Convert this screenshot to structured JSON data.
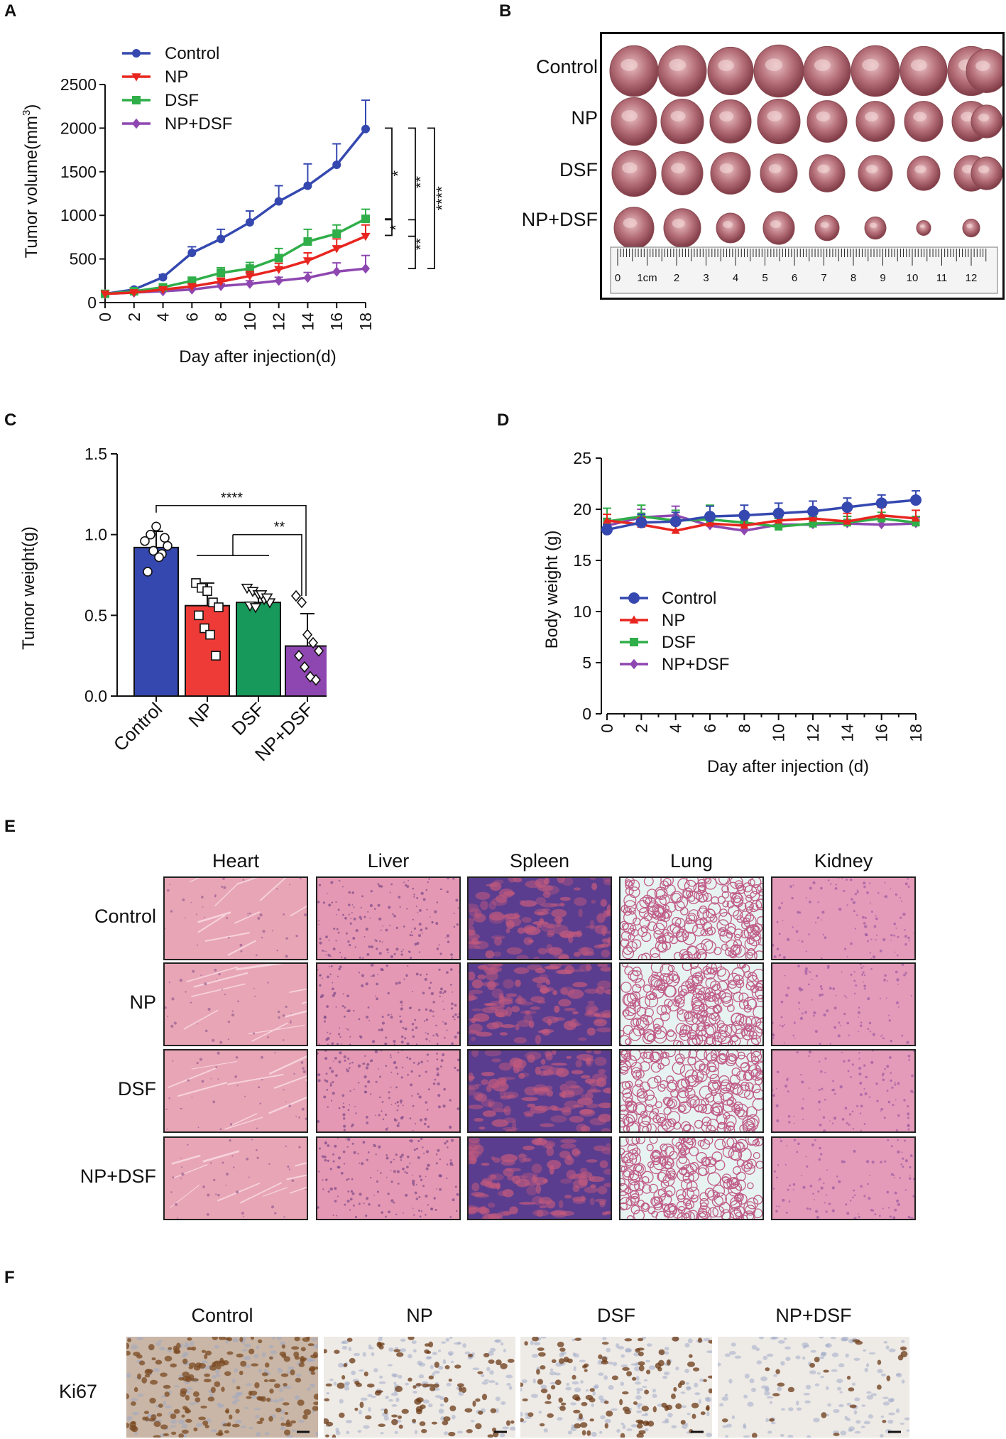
{
  "panels": {
    "A": "A",
    "B": "B",
    "C": "C",
    "D": "D",
    "E": "E",
    "F": "F"
  },
  "colors": {
    "control": "#3548b0",
    "np": "#e8251f",
    "dsf": "#2fae49",
    "npdsf": "#8e47b0",
    "dsf_bar": "#16995a",
    "np_bar": "#ee3b37"
  },
  "chart_data": [
    {
      "id": "A",
      "type": "line",
      "title": "",
      "xlabel": "Day after injection(d)",
      "ylabel": "Tumor volume(mm",
      "ylabel_sup": "3",
      "ylabel_close": ")",
      "x": [
        0,
        2,
        4,
        6,
        8,
        10,
        12,
        14,
        16,
        18
      ],
      "xlim": [
        0,
        18
      ],
      "ylim": [
        0,
        2500
      ],
      "yticks": [
        0,
        500,
        1000,
        1500,
        2000,
        2500
      ],
      "series": [
        {
          "name": "Control",
          "values": [
            100,
            150,
            290,
            570,
            730,
            920,
            1160,
            1340,
            1580,
            1990
          ],
          "err": [
            0,
            20,
            30,
            70,
            110,
            130,
            180,
            250,
            240,
            330
          ],
          "marker": "circle"
        },
        {
          "name": "NP",
          "values": [
            100,
            115,
            150,
            185,
            240,
            305,
            380,
            480,
            620,
            760
          ],
          "err": [
            0,
            10,
            20,
            30,
            40,
            50,
            70,
            90,
            110,
            130
          ],
          "marker": "triangle-down"
        },
        {
          "name": "DSF",
          "values": [
            100,
            130,
            175,
            250,
            340,
            390,
            510,
            700,
            790,
            960
          ],
          "err": [
            0,
            15,
            25,
            40,
            60,
            70,
            110,
            140,
            100,
            110
          ],
          "marker": "square"
        },
        {
          "name": "NP+DSF",
          "values": [
            100,
            115,
            130,
            150,
            190,
            215,
            250,
            285,
            355,
            390
          ],
          "err": [
            0,
            10,
            15,
            20,
            25,
            35,
            40,
            60,
            100,
            150
          ],
          "marker": "diamond"
        }
      ],
      "annotations": [
        {
          "text": "*",
          "between": [
            "Control",
            "DSF"
          ]
        },
        {
          "text": "**",
          "between": [
            "Control",
            "NP"
          ]
        },
        {
          "text": "****",
          "between": [
            "Control",
            "NP+DSF"
          ]
        },
        {
          "text": "*",
          "between": [
            "DSF",
            "NP"
          ]
        },
        {
          "text": "**",
          "between": [
            "DSF",
            "NP+DSF"
          ]
        }
      ],
      "legend": "top-left"
    },
    {
      "id": "C",
      "type": "bar",
      "ylabel": "Tumor weight(g)",
      "categories": [
        "Control",
        "NP",
        "DSF",
        "NP+DSF"
      ],
      "values": [
        0.92,
        0.56,
        0.58,
        0.31
      ],
      "err": [
        0.1,
        0.14,
        0.05,
        0.2
      ],
      "points": [
        [
          0.96,
          1.0,
          1.05,
          0.88,
          0.93,
          0.77,
          0.9,
          0.86,
          0.98
        ],
        [
          0.7,
          0.67,
          0.65,
          0.58,
          0.55,
          0.5,
          0.42,
          0.38,
          0.25
        ],
        [
          0.67,
          0.65,
          0.63,
          0.6,
          0.58,
          0.56,
          0.55,
          0.63,
          0.61
        ],
        [
          0.62,
          0.58,
          0.38,
          0.33,
          0.28,
          0.25,
          0.18,
          0.12,
          0.1
        ]
      ],
      "ylim": [
        0,
        1.5
      ],
      "yticks": [
        "0.0",
        "0.5",
        "1.0",
        "1.5"
      ],
      "annotations": [
        {
          "text": "****",
          "between": [
            "Control",
            "NP+DSF"
          ]
        },
        {
          "text": "**",
          "between": [
            "NP/DSF",
            "NP+DSF"
          ]
        }
      ]
    },
    {
      "id": "D",
      "type": "line",
      "xlabel": "Day after injection (d)",
      "ylabel": "Body weight (g)",
      "x": [
        0,
        2,
        4,
        6,
        8,
        10,
        12,
        14,
        16,
        18
      ],
      "ylim": [
        0,
        25
      ],
      "yticks": [
        0,
        5,
        10,
        15,
        20,
        25
      ],
      "series": [
        {
          "name": "Control",
          "values": [
            18.0,
            18.7,
            18.8,
            19.3,
            19.4,
            19.6,
            19.8,
            20.2,
            20.6,
            20.9
          ],
          "err": [
            0.5,
            0.8,
            0.9,
            1.0,
            1.0,
            1.0,
            1.0,
            0.9,
            0.8,
            0.9
          ],
          "marker": "circle"
        },
        {
          "name": "NP",
          "values": [
            18.9,
            18.5,
            17.9,
            18.6,
            18.4,
            18.9,
            19.1,
            18.8,
            19.4,
            19.1
          ],
          "err": [
            0.6,
            0.7,
            0.7,
            0.8,
            0.8,
            0.8,
            0.8,
            0.8,
            0.8,
            0.8
          ],
          "marker": "triangle-up"
        },
        {
          "name": "DSF",
          "values": [
            18.8,
            19.3,
            18.9,
            19.0,
            18.7,
            18.3,
            18.6,
            18.7,
            19.1,
            18.7
          ],
          "err": [
            1.3,
            1.1,
            1.0,
            1.4,
            0.9,
            0.8,
            0.7,
            0.6,
            0.6,
            0.6
          ],
          "marker": "square"
        },
        {
          "name": "NP+DSF",
          "values": [
            18.4,
            19.2,
            19.4,
            18.4,
            17.9,
            18.5,
            18.5,
            18.6,
            18.5,
            18.6
          ],
          "err": [
            0.7,
            0.8,
            0.9,
            0.8,
            0.7,
            0.7,
            0.7,
            0.7,
            0.6,
            0.6
          ],
          "marker": "diamond"
        }
      ],
      "legend": "center-left"
    }
  ],
  "panelB": {
    "rows": [
      "Control",
      "NP",
      "DSF",
      "NP+DSF"
    ],
    "ruler_labels": [
      "0",
      "1cm",
      "2",
      "3",
      "4",
      "5",
      "6",
      "7",
      "8",
      "9",
      "10",
      "11",
      "12"
    ]
  },
  "panelE": {
    "columns": [
      "Heart",
      "Liver",
      "Spleen",
      "Lung",
      "Kidney"
    ],
    "rows": [
      "Control",
      "NP",
      "DSF",
      "NP+DSF"
    ]
  },
  "panelF": {
    "columns": [
      "Control",
      "NP",
      "DSF",
      "NP+DSF"
    ],
    "row_label": "Ki67"
  }
}
